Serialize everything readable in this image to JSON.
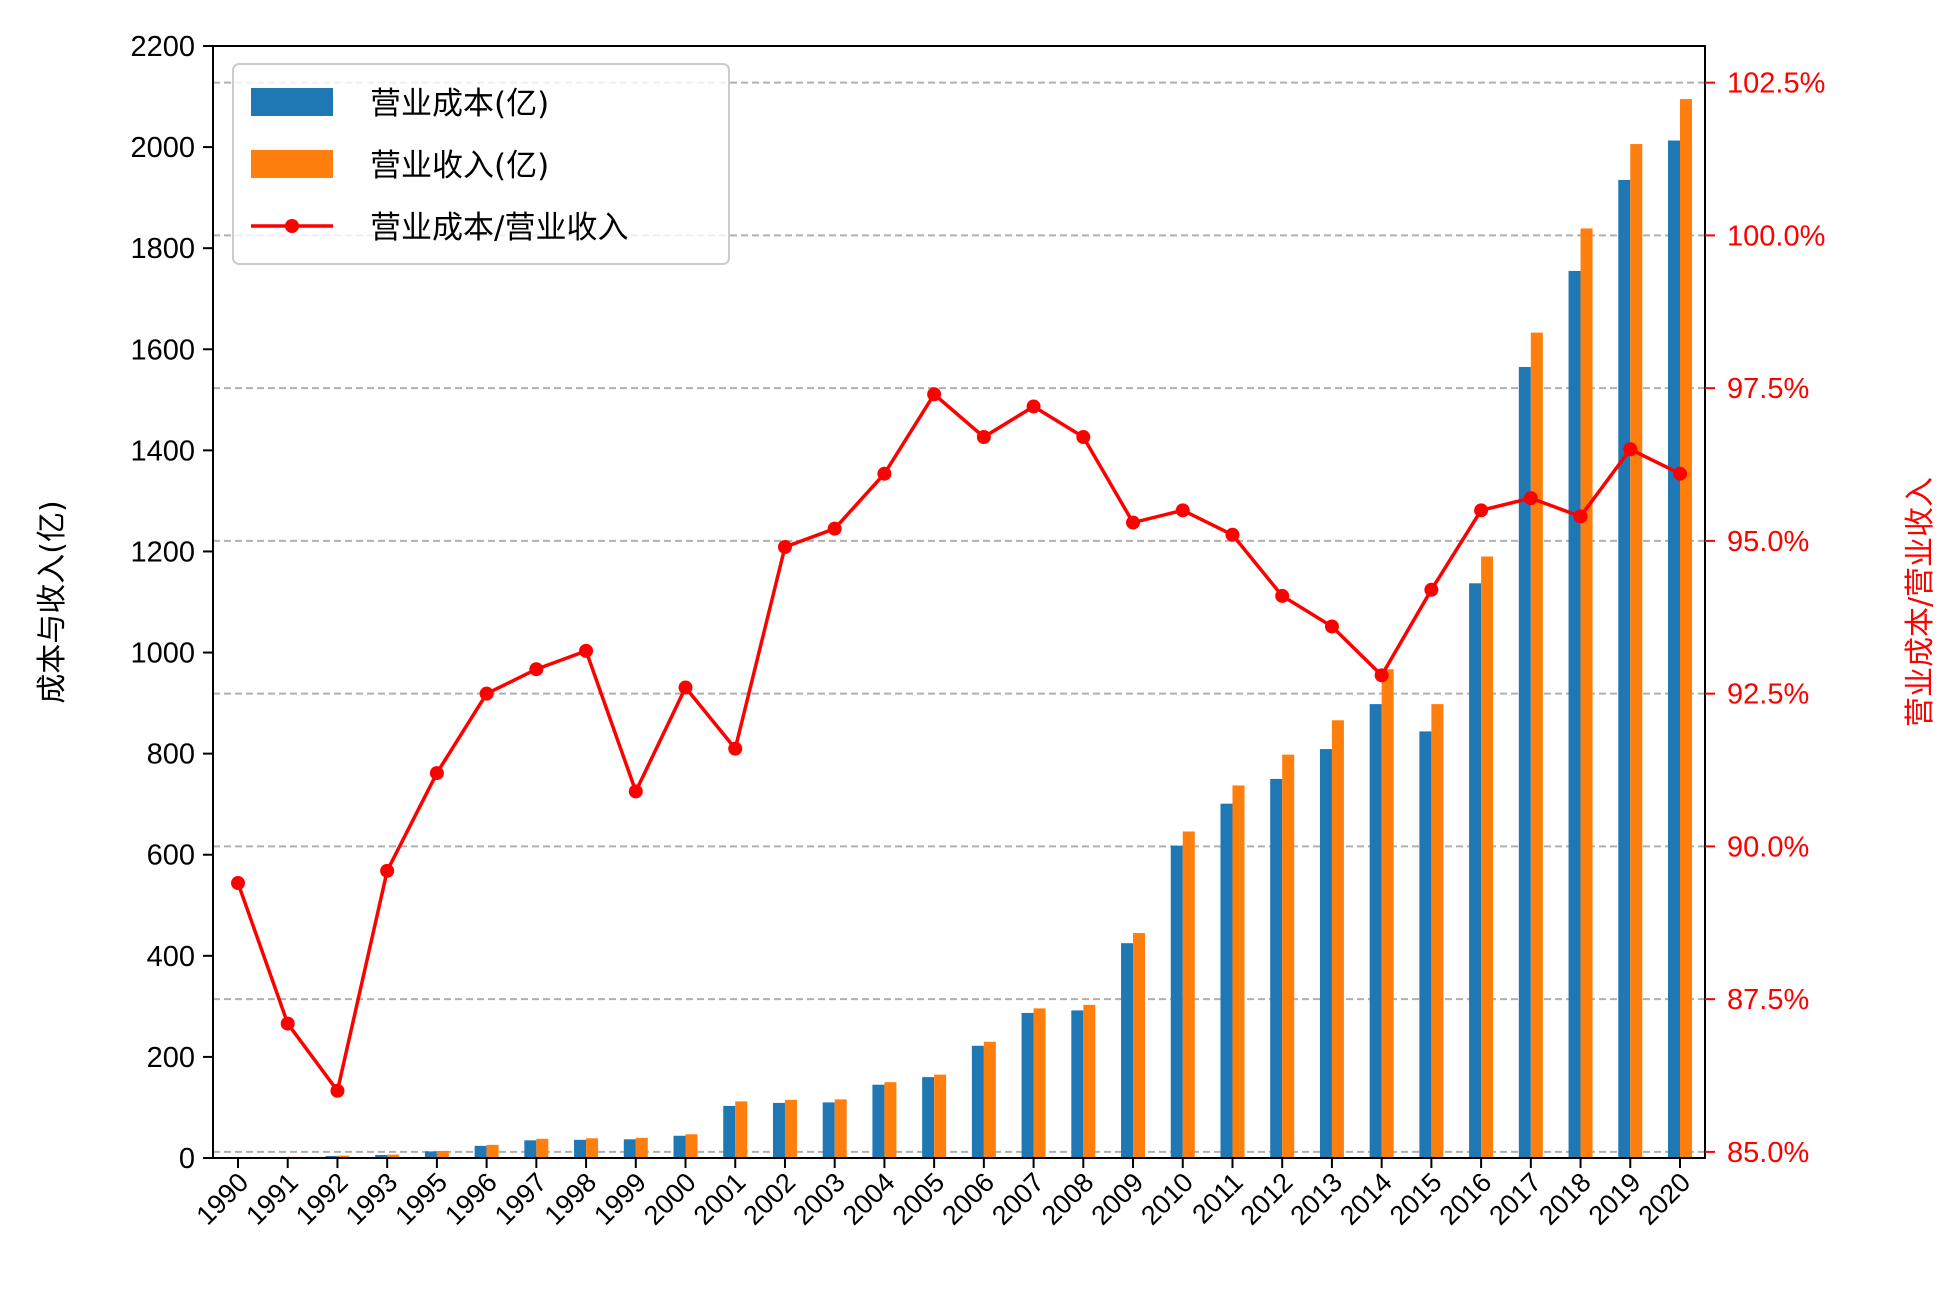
{
  "chart_data": {
    "type": "bar",
    "categories": [
      "1990",
      "1991",
      "1992",
      "1993",
      "1995",
      "1996",
      "1997",
      "1998",
      "1999",
      "2000",
      "2001",
      "2002",
      "2003",
      "2004",
      "2005",
      "2006",
      "2007",
      "2008",
      "2009",
      "2010",
      "2011",
      "2012",
      "2013",
      "2014",
      "2015",
      "2016",
      "2017",
      "2018",
      "2019",
      "2020"
    ],
    "series": [
      {
        "name": "营业成本(亿)",
        "type": "bar",
        "axis": "left",
        "color": "#1f77b4",
        "values": [
          1.5,
          2,
          4,
          6,
          13,
          24,
          35,
          36,
          37,
          44,
          103,
          109,
          110,
          145,
          160,
          222,
          287,
          292,
          425,
          618,
          701,
          750,
          809,
          898,
          844,
          1137,
          1565,
          1755,
          1935,
          2013
        ]
      },
      {
        "name": "营业收入(亿)",
        "type": "bar",
        "axis": "left",
        "color": "#ff7f0e",
        "values": [
          1.7,
          2.3,
          4.7,
          6.7,
          14,
          26,
          38,
          39,
          40,
          47,
          112,
          115,
          116,
          150,
          165,
          230,
          296,
          303,
          445,
          646,
          737,
          798,
          866,
          967,
          898,
          1190,
          1633,
          1839,
          2006,
          2095
        ]
      },
      {
        "name": "营业成本/营业收入",
        "type": "line",
        "axis": "right",
        "color": "#ff0000",
        "values": [
          89.4,
          87.1,
          86.0,
          89.6,
          91.2,
          92.5,
          92.9,
          93.2,
          90.9,
          92.6,
          91.6,
          94.9,
          95.2,
          96.1,
          97.4,
          96.7,
          97.2,
          96.7,
          95.3,
          95.5,
          95.1,
          94.1,
          93.6,
          92.8,
          94.2,
          95.5,
          95.7,
          95.4,
          96.5,
          96.1
        ]
      }
    ],
    "ylabel": "成本与收入(亿)",
    "ylabel_right": "营业成本/营业收入",
    "ylim": [
      0,
      2200
    ],
    "ylim_right": [
      84.9,
      103.1
    ],
    "yticks": [
      0,
      200,
      400,
      600,
      800,
      1000,
      1200,
      1400,
      1600,
      1800,
      2000,
      2200
    ],
    "yticks_right": [
      85.0,
      87.5,
      90.0,
      92.5,
      95.0,
      97.5,
      100.0,
      102.5
    ],
    "yticks_right_labels": [
      "85.0%",
      "87.5%",
      "90.0%",
      "92.5%",
      "95.0%",
      "97.5%",
      "100.0%",
      "102.5%"
    ],
    "grid": "horizontal dashed on right axis",
    "legend_position": "upper-left"
  }
}
